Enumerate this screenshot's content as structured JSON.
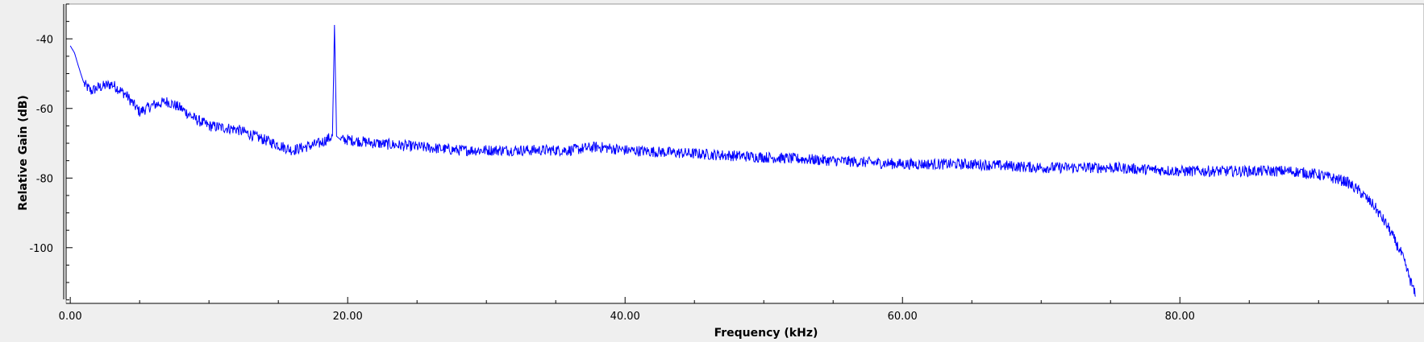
{
  "chart_data": {
    "type": "line",
    "xlabel": "Frequency (kHz)",
    "ylabel": "Relative Gain (dB)",
    "xlim": [
      -0.3,
      97.6
    ],
    "ylim": [
      -116,
      -30
    ],
    "x_ticks": [
      {
        "value": 0,
        "label": "0.00"
      },
      {
        "value": 20,
        "label": "20.00"
      },
      {
        "value": 40,
        "label": "40.00"
      },
      {
        "value": 60,
        "label": "60.00"
      },
      {
        "value": 80,
        "label": "80.00"
      }
    ],
    "y_ticks": [
      {
        "value": -40,
        "label": "-40"
      },
      {
        "value": -60,
        "label": "-60"
      },
      {
        "value": -80,
        "label": "-80"
      },
      {
        "value": -100,
        "label": "-100"
      }
    ],
    "grid": false,
    "line_color": "#0000ff",
    "series": [
      {
        "x": [
          0,
          0.3,
          0.6,
          1,
          1.5,
          2,
          3,
          4,
          5,
          6,
          7,
          8,
          9,
          10,
          12,
          14,
          16,
          17,
          18,
          18.9,
          19.05,
          19.2,
          19.5,
          20,
          22,
          25,
          28,
          30,
          33,
          36,
          38,
          40,
          45,
          50,
          55,
          60,
          65,
          70,
          75,
          80,
          85,
          88,
          90,
          92,
          93,
          94,
          95,
          96,
          96.5,
          97
        ],
        "y": [
          -42,
          -44,
          -48,
          -53,
          -55,
          -54,
          -53,
          -56,
          -61,
          -59,
          -58,
          -60,
          -63,
          -65,
          -66,
          -69,
          -72,
          -71,
          -70,
          -68,
          -36,
          -68,
          -69,
          -69,
          -70,
          -71,
          -72,
          -72,
          -72,
          -72,
          -71,
          -72,
          -73,
          -74,
          -75,
          -76,
          -76,
          -77,
          -77,
          -78,
          -78,
          -78,
          -79,
          -81,
          -84,
          -88,
          -94,
          -102,
          -108,
          -114
        ]
      }
    ]
  }
}
